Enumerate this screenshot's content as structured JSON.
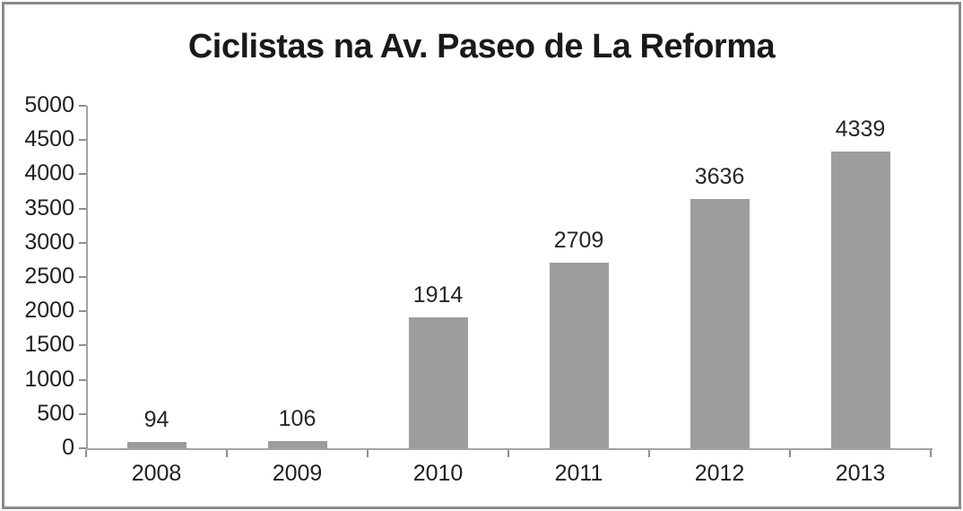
{
  "chart_data": {
    "type": "bar",
    "title": "Ciclistas na Av. Paseo de La Reforma",
    "categories": [
      "2008",
      "2009",
      "2010",
      "2011",
      "2012",
      "2013"
    ],
    "values": [
      94,
      106,
      1914,
      2709,
      3636,
      4339
    ],
    "data_labels": [
      "94",
      "106",
      "1914",
      "2709",
      "3636",
      "4339"
    ],
    "xlabel": "",
    "ylabel": "",
    "ylim": [
      0,
      5000
    ],
    "y_ticks": [
      0,
      500,
      1000,
      1500,
      2000,
      2500,
      3000,
      3500,
      4000,
      4500,
      5000
    ],
    "grid": false,
    "legend": false,
    "bar_color": "#9d9d9d",
    "axis_color": "#a3a3a3",
    "tick_color": "#8e8e8e",
    "text_color": "#1f1f1f",
    "frame_border_color": "#8a8a8a",
    "background_color": "#ffffff"
  }
}
